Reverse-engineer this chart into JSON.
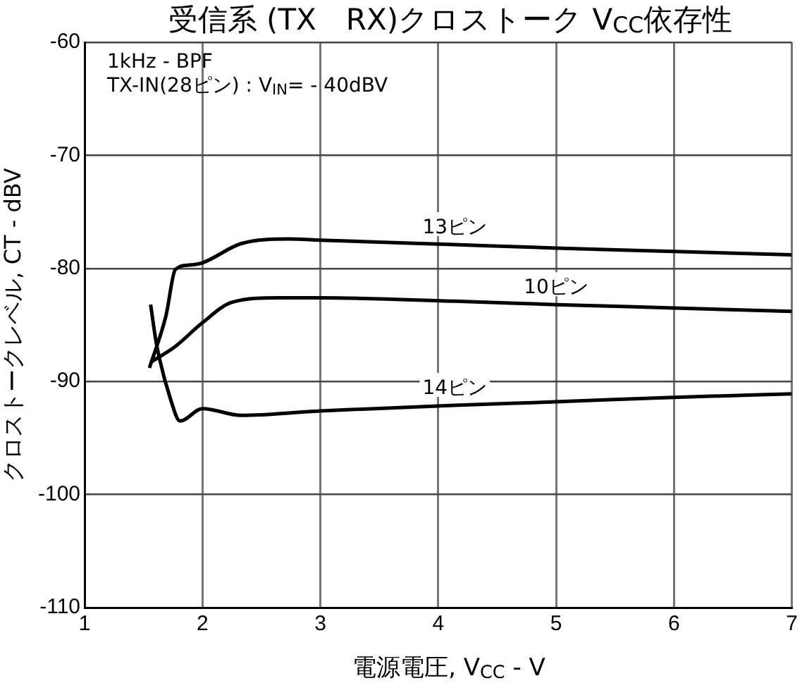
{
  "chart_data": {
    "type": "line",
    "title": "受信系 (TX　RX)クロストーク V$_{CC}$依存性",
    "xlabel": "電源電圧, V$_{CC}$ - V",
    "ylabel": "クロストークレベル, CT - dBV",
    "annotations": [
      "1kHz - BPF",
      "TX-IN(28ピン) : V$_{IN}$= - 40dBV"
    ],
    "xlim": [
      1,
      7
    ],
    "xticks": [
      1,
      2,
      3,
      4,
      5,
      6,
      7
    ],
    "ylim": [
      -110,
      -60
    ],
    "yticks": [
      -110,
      -100,
      -90,
      -80,
      -70,
      -60
    ],
    "grid": true,
    "legend": false,
    "marker": "none",
    "line_style": "solid",
    "series": [
      {
        "name": "13ピン",
        "color": "#000000",
        "x": [
          1.55,
          1.69,
          1.77,
          1.89,
          2.0,
          2.33,
          2.73,
          3.0,
          4.14,
          5,
          6,
          7
        ],
        "values": [
          -88.8,
          -84.2,
          -80.1,
          -79.7,
          -79.5,
          -77.8,
          -77.4,
          -77.5,
          -77.9,
          -78.2,
          -78.5,
          -78.8
        ]
      },
      {
        "name": "10ピン",
        "color": "#000000",
        "x": [
          1.56,
          1.77,
          2.0,
          2.25,
          2.65,
          3.0,
          4.14,
          5,
          6,
          7
        ],
        "values": [
          -88.3,
          -86.9,
          -84.8,
          -83.0,
          -82.6,
          -82.6,
          -82.9,
          -83.2,
          -83.5,
          -83.8
        ]
      },
      {
        "name": "14ピン",
        "color": "#000000",
        "x": [
          1.56,
          1.61,
          1.73,
          1.81,
          2.0,
          2.33,
          3.0,
          4.14,
          5,
          6,
          7
        ],
        "values": [
          -83.2,
          -86.7,
          -91.6,
          -93.5,
          -92.4,
          -93.0,
          -92.6,
          -92.1,
          -91.8,
          -91.4,
          -91.1
        ]
      }
    ]
  }
}
